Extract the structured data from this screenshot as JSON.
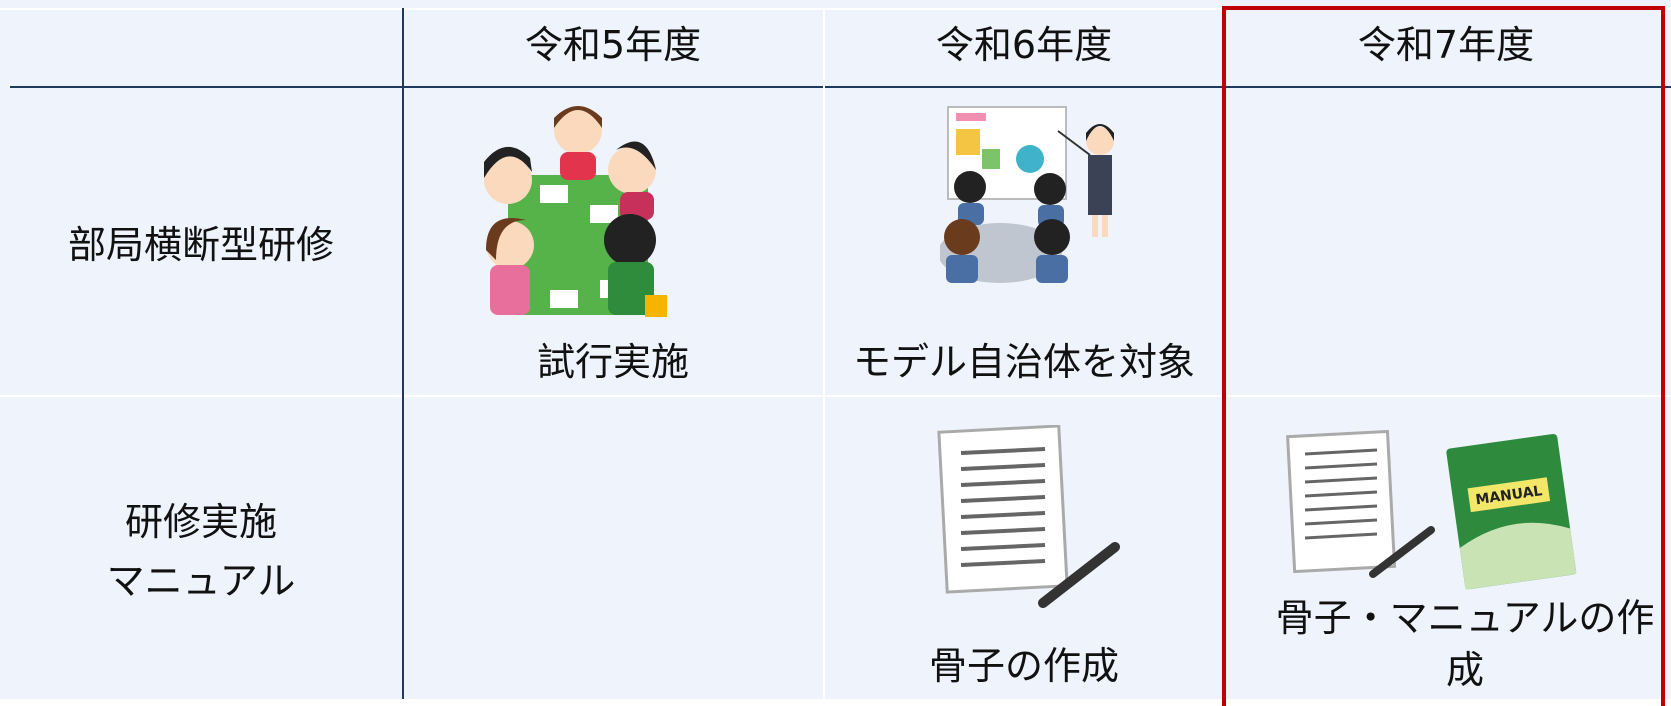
{
  "header": {
    "columns": [
      "令和5年度",
      "令和6年度",
      "令和7年度"
    ]
  },
  "rows": [
    {
      "label": [
        "部局横断型研修"
      ],
      "cells": [
        "試行実施",
        "モデル自治体を対象",
        null
      ]
    },
    {
      "label": [
        "研修実施",
        "マニュアル"
      ],
      "cells": [
        null,
        "骨子の作成",
        "骨子・マニュアルの作成"
      ]
    }
  ]
}
